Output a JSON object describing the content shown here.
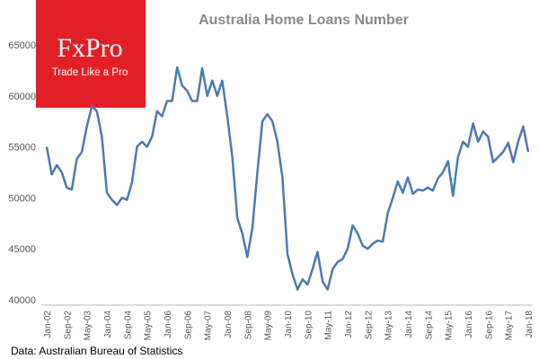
{
  "chart_data": {
    "type": "line",
    "title": "Australia Home Loans Number",
    "source": "Data: Australian Bureau of Statistics",
    "logo": {
      "brand": "FxPro",
      "tagline": "Trade Like a Pro"
    },
    "x": [
      "Jan-02",
      "Mar-02",
      "May-02",
      "Jul-02",
      "Sep-02",
      "Nov-02",
      "Jan-03",
      "Mar-03",
      "May-03",
      "Jul-03",
      "Sep-03",
      "Nov-03",
      "Jan-04",
      "Mar-04",
      "May-04",
      "Jul-04",
      "Sep-04",
      "Nov-04",
      "Jan-05",
      "Mar-05",
      "May-05",
      "Jul-05",
      "Sep-05",
      "Nov-05",
      "Jan-06",
      "Mar-06",
      "May-06",
      "Jul-06",
      "Sep-06",
      "Nov-06",
      "Jan-07",
      "Mar-07",
      "May-07",
      "Jul-07",
      "Sep-07",
      "Nov-07",
      "Jan-08",
      "Mar-08",
      "May-08",
      "Jul-08",
      "Sep-08",
      "Nov-08",
      "Jan-09",
      "Mar-09",
      "May-09",
      "Jul-09",
      "Sep-09",
      "Nov-09",
      "Jan-10",
      "Mar-10",
      "May-10",
      "Jul-10",
      "Sep-10",
      "Nov-10",
      "Jan-11",
      "Mar-11",
      "May-11",
      "Jul-11",
      "Sep-11",
      "Nov-11",
      "Jan-12",
      "Mar-12",
      "May-12",
      "Jul-12",
      "Sep-12",
      "Nov-12",
      "Jan-13",
      "Mar-13",
      "May-13",
      "Jul-13",
      "Sep-13",
      "Nov-13",
      "Jan-14",
      "Mar-14",
      "May-14",
      "Jul-14",
      "Sep-14",
      "Nov-14",
      "Jan-15",
      "Mar-15",
      "May-15",
      "Jul-15",
      "Sep-15",
      "Nov-15",
      "Jan-16",
      "Mar-16",
      "May-16",
      "Jul-16",
      "Sep-16",
      "Nov-16",
      "Jan-17",
      "Mar-17",
      "May-17",
      "Jul-17",
      "Sep-17",
      "Nov-17",
      "Jan-18"
    ],
    "series": [
      {
        "name": "Home Loans Number",
        "color": "#4a7ab5",
        "values": [
          55000,
          52300,
          53200,
          52500,
          51000,
          50800,
          53800,
          54500,
          57000,
          59000,
          58500,
          56000,
          50500,
          49800,
          49300,
          50000,
          49800,
          51500,
          55000,
          55500,
          55000,
          56000,
          58500,
          58000,
          59500,
          59500,
          62800,
          61000,
          60500,
          59500,
          59500,
          62700,
          60000,
          61500,
          60000,
          61500,
          58000,
          54000,
          48000,
          46500,
          44200,
          47000,
          52500,
          57500,
          58200,
          57500,
          55500,
          52000,
          44500,
          42500,
          41000,
          42000,
          41500,
          43000,
          44700,
          41800,
          41000,
          43000,
          43700,
          44000,
          45000,
          47300,
          46500,
          45300,
          45000,
          45500,
          45800,
          45700,
          48500,
          50000,
          51600,
          50500,
          52000,
          50400,
          50800,
          50700,
          51000,
          50700,
          51900,
          52500,
          53600,
          50200,
          54000,
          55500,
          55000,
          57300,
          55500,
          56500,
          56000,
          53500,
          54000,
          54500,
          55400,
          53500,
          55500,
          57000,
          54500
        ]
      }
    ],
    "xticks": [
      "Jan-02",
      "Sep-02",
      "May-03",
      "Jan-04",
      "Sep-04",
      "May-05",
      "Jan-06",
      "Sep-06",
      "May-07",
      "Jan-08",
      "Sep-08",
      "May-09",
      "Jan-10",
      "Sep-10",
      "May-11",
      "Jan-12",
      "Sep-12",
      "May-13",
      "Jan-14",
      "Sep-14",
      "May-15",
      "Jan-16",
      "Sep-16",
      "May-17",
      "Jan-18"
    ],
    "ylim": [
      40000,
      65000
    ],
    "yticks": [
      40000,
      45000,
      50000,
      55000,
      60000,
      65000
    ],
    "grid": false
  }
}
